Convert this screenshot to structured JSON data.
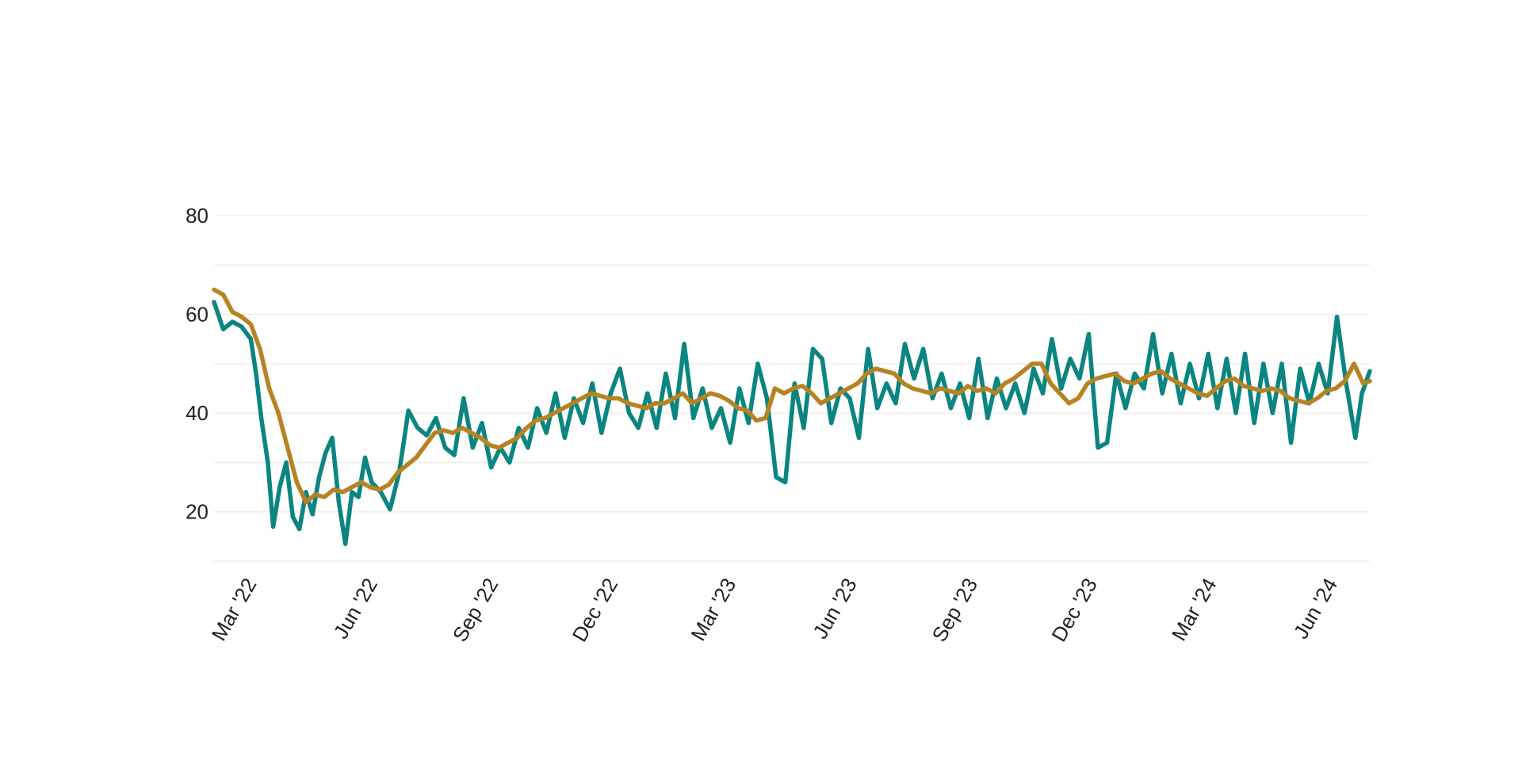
{
  "chart_data": {
    "type": "line",
    "title": "",
    "xlabel": "",
    "ylabel": "",
    "legend": "none",
    "grid": true,
    "x_range": [
      "2022-02-01",
      "2024-06-30"
    ],
    "ylim": [
      10,
      80
    ],
    "y_ticks": [
      {
        "value": 20,
        "label": "20"
      },
      {
        "value": 40,
        "label": "40"
      },
      {
        "value": 60,
        "label": "60"
      },
      {
        "value": 80,
        "label": "80"
      }
    ],
    "y_gridlines": [
      10,
      20,
      30,
      40,
      50,
      60,
      70,
      80
    ],
    "x_ticks": [
      {
        "value": "2022-03-01",
        "label": "Mar '22"
      },
      {
        "value": "2022-06-01",
        "label": "Jun '22"
      },
      {
        "value": "2022-09-01",
        "label": "Sep '22"
      },
      {
        "value": "2022-12-01",
        "label": "Dec '22"
      },
      {
        "value": "2023-03-01",
        "label": "Mar '23"
      },
      {
        "value": "2023-06-01",
        "label": "Jun '23"
      },
      {
        "value": "2023-09-01",
        "label": "Sep '23"
      },
      {
        "value": "2023-12-01",
        "label": "Dec '23"
      },
      {
        "value": "2024-03-01",
        "label": "Mar '24"
      },
      {
        "value": "2024-06-01",
        "label": "Jun '24"
      }
    ],
    "series": [
      {
        "color": "#0b8582",
        "x": [
          "2022-02-01",
          "2022-02-08",
          "2022-02-15",
          "2022-02-22",
          "2022-03-01",
          "2022-03-05",
          "2022-03-09",
          "2022-03-14",
          "2022-03-18",
          "2022-03-23",
          "2022-03-28",
          "2022-04-02",
          "2022-04-07",
          "2022-04-12",
          "2022-04-17",
          "2022-04-22",
          "2022-04-27",
          "2022-05-02",
          "2022-05-07",
          "2022-05-12",
          "2022-05-17",
          "2022-05-22",
          "2022-05-27",
          "2022-06-01",
          "2022-06-08",
          "2022-06-15",
          "2022-06-22",
          "2022-06-29",
          "2022-07-06",
          "2022-07-13",
          "2022-07-20",
          "2022-07-27",
          "2022-08-03",
          "2022-08-10",
          "2022-08-17",
          "2022-08-24",
          "2022-08-31",
          "2022-09-07",
          "2022-09-14",
          "2022-09-21",
          "2022-09-28",
          "2022-10-05",
          "2022-10-12",
          "2022-10-19",
          "2022-10-26",
          "2022-11-02",
          "2022-11-09",
          "2022-11-16",
          "2022-11-23",
          "2022-11-30",
          "2022-12-07",
          "2022-12-14",
          "2022-12-21",
          "2022-12-28",
          "2023-01-04",
          "2023-01-11",
          "2023-01-18",
          "2023-01-25",
          "2023-02-01",
          "2023-02-08",
          "2023-02-15",
          "2023-02-22",
          "2023-03-01",
          "2023-03-08",
          "2023-03-15",
          "2023-03-22",
          "2023-03-29",
          "2023-04-05",
          "2023-04-12",
          "2023-04-19",
          "2023-04-26",
          "2023-05-03",
          "2023-05-10",
          "2023-05-17",
          "2023-05-24",
          "2023-05-31",
          "2023-06-07",
          "2023-06-14",
          "2023-06-21",
          "2023-06-28",
          "2023-07-05",
          "2023-07-12",
          "2023-07-19",
          "2023-07-26",
          "2023-08-02",
          "2023-08-09",
          "2023-08-16",
          "2023-08-23",
          "2023-08-30",
          "2023-09-06",
          "2023-09-13",
          "2023-09-20",
          "2023-09-27",
          "2023-10-04",
          "2023-10-11",
          "2023-10-18",
          "2023-10-25",
          "2023-11-01",
          "2023-11-08",
          "2023-11-15",
          "2023-11-22",
          "2023-11-29",
          "2023-12-06",
          "2023-12-13",
          "2023-12-20",
          "2023-12-27",
          "2024-01-03",
          "2024-01-10",
          "2024-01-17",
          "2024-01-24",
          "2024-01-31",
          "2024-02-07",
          "2024-02-14",
          "2024-02-21",
          "2024-02-28",
          "2024-03-06",
          "2024-03-13",
          "2024-03-20",
          "2024-03-27",
          "2024-04-03",
          "2024-04-10",
          "2024-04-17",
          "2024-04-24",
          "2024-05-01",
          "2024-05-08",
          "2024-05-15",
          "2024-05-22",
          "2024-05-29",
          "2024-06-05",
          "2024-06-12",
          "2024-06-19",
          "2024-06-24",
          "2024-06-30"
        ],
        "y": [
          62.5,
          57.0,
          58.5,
          57.5,
          55.0,
          48.0,
          39.0,
          30.0,
          17.0,
          25.0,
          30.0,
          19.0,
          16.5,
          24.0,
          19.5,
          27.0,
          32.0,
          35.0,
          22.0,
          13.5,
          24.0,
          23.0,
          31.0,
          26.0,
          24.0,
          20.5,
          28.0,
          40.5,
          37.0,
          35.5,
          39.0,
          33.0,
          31.5,
          43.0,
          33.0,
          38.0,
          29.0,
          33.0,
          30.0,
          37.0,
          33.0,
          41.0,
          36.0,
          44.0,
          35.0,
          43.0,
          38.0,
          46.0,
          36.0,
          44.0,
          49.0,
          40.0,
          37.0,
          44.0,
          37.0,
          48.0,
          39.0,
          54.0,
          39.0,
          45.0,
          37.0,
          41.0,
          34.0,
          45.0,
          38.0,
          50.0,
          43.0,
          27.0,
          26.0,
          46.0,
          37.0,
          53.0,
          51.0,
          38.0,
          45.0,
          43.0,
          35.0,
          53.0,
          41.0,
          46.0,
          42.0,
          54.0,
          47.0,
          53.0,
          43.0,
          48.0,
          41.0,
          46.0,
          39.0,
          51.0,
          39.0,
          47.0,
          41.0,
          46.0,
          40.0,
          49.0,
          44.0,
          55.0,
          45.0,
          51.0,
          47.0,
          56.0,
          33.0,
          34.0,
          48.0,
          41.0,
          48.0,
          45.0,
          56.0,
          44.0,
          52.0,
          42.0,
          50.0,
          43.0,
          52.0,
          41.0,
          51.0,
          40.0,
          52.0,
          38.0,
          50.0,
          40.0,
          50.0,
          34.0,
          49.0,
          42.0,
          50.0,
          44.0,
          59.5,
          46.0,
          35.0,
          44.0,
          48.5
        ]
      },
      {
        "color": "#b78322",
        "x": [
          "2022-02-01",
          "2022-02-08",
          "2022-02-15",
          "2022-02-22",
          "2022-03-01",
          "2022-03-08",
          "2022-03-15",
          "2022-03-22",
          "2022-03-29",
          "2022-04-05",
          "2022-04-12",
          "2022-04-19",
          "2022-04-26",
          "2022-05-03",
          "2022-05-10",
          "2022-05-17",
          "2022-05-24",
          "2022-05-31",
          "2022-06-07",
          "2022-06-14",
          "2022-06-21",
          "2022-06-28",
          "2022-07-05",
          "2022-07-12",
          "2022-07-19",
          "2022-07-26",
          "2022-08-02",
          "2022-08-09",
          "2022-08-16",
          "2022-08-23",
          "2022-08-30",
          "2022-09-06",
          "2022-09-13",
          "2022-09-20",
          "2022-09-27",
          "2022-10-04",
          "2022-10-11",
          "2022-10-18",
          "2022-10-25",
          "2022-11-01",
          "2022-11-08",
          "2022-11-15",
          "2022-11-22",
          "2022-11-29",
          "2022-12-06",
          "2022-12-13",
          "2022-12-20",
          "2022-12-27",
          "2023-01-03",
          "2023-01-10",
          "2023-01-17",
          "2023-01-24",
          "2023-01-31",
          "2023-02-07",
          "2023-02-14",
          "2023-02-21",
          "2023-02-28",
          "2023-03-07",
          "2023-03-14",
          "2023-03-21",
          "2023-03-28",
          "2023-04-04",
          "2023-04-11",
          "2023-04-18",
          "2023-04-25",
          "2023-05-02",
          "2023-05-09",
          "2023-05-16",
          "2023-05-23",
          "2023-05-30",
          "2023-06-06",
          "2023-06-13",
          "2023-06-20",
          "2023-06-27",
          "2023-07-04",
          "2023-07-11",
          "2023-07-18",
          "2023-07-25",
          "2023-08-01",
          "2023-08-08",
          "2023-08-15",
          "2023-08-22",
          "2023-08-29",
          "2023-09-05",
          "2023-09-12",
          "2023-09-19",
          "2023-09-26",
          "2023-10-03",
          "2023-10-10",
          "2023-10-17",
          "2023-10-24",
          "2023-10-31",
          "2023-11-07",
          "2023-11-14",
          "2023-11-21",
          "2023-11-28",
          "2023-12-05",
          "2023-12-12",
          "2023-12-19",
          "2023-12-26",
          "2024-01-02",
          "2024-01-09",
          "2024-01-16",
          "2024-01-23",
          "2024-01-30",
          "2024-02-06",
          "2024-02-13",
          "2024-02-20",
          "2024-02-27",
          "2024-03-05",
          "2024-03-12",
          "2024-03-19",
          "2024-03-26",
          "2024-04-02",
          "2024-04-09",
          "2024-04-16",
          "2024-04-23",
          "2024-04-30",
          "2024-05-07",
          "2024-05-14",
          "2024-05-21",
          "2024-05-28",
          "2024-06-04",
          "2024-06-11",
          "2024-06-18",
          "2024-06-25",
          "2024-06-30"
        ],
        "y": [
          65.0,
          64.0,
          60.5,
          59.5,
          58.0,
          53.0,
          45.0,
          40.0,
          33.0,
          26.0,
          22.0,
          23.5,
          23.0,
          24.5,
          24.0,
          25.0,
          26.0,
          25.0,
          24.5,
          25.5,
          28.0,
          29.5,
          31.0,
          33.5,
          36.0,
          36.5,
          36.0,
          37.0,
          36.0,
          35.0,
          33.5,
          33.0,
          34.0,
          35.0,
          37.0,
          38.5,
          39.0,
          40.0,
          41.0,
          42.0,
          43.0,
          44.0,
          43.5,
          43.0,
          43.0,
          42.0,
          41.5,
          41.0,
          42.0,
          42.0,
          43.0,
          44.0,
          42.0,
          43.0,
          44.0,
          43.5,
          42.5,
          41.0,
          40.5,
          38.5,
          39.0,
          45.0,
          44.0,
          45.0,
          45.5,
          44.0,
          42.0,
          43.0,
          44.0,
          45.0,
          46.0,
          48.0,
          49.0,
          48.5,
          48.0,
          46.0,
          45.0,
          44.5,
          44.0,
          45.0,
          44.5,
          44.0,
          45.5,
          44.5,
          45.0,
          44.0,
          46.0,
          47.0,
          48.5,
          50.0,
          50.0,
          46.0,
          44.0,
          42.0,
          43.0,
          46.0,
          47.0,
          47.5,
          48.0,
          46.5,
          46.0,
          47.0,
          48.0,
          48.5,
          47.0,
          46.0,
          45.0,
          44.0,
          43.5,
          45.0,
          46.5,
          47.0,
          45.5,
          45.0,
          44.5,
          45.0,
          44.5,
          43.0,
          42.5,
          42.0,
          43.0,
          44.5,
          45.0,
          46.5,
          50.0,
          46.0,
          46.5
        ]
      }
    ]
  }
}
